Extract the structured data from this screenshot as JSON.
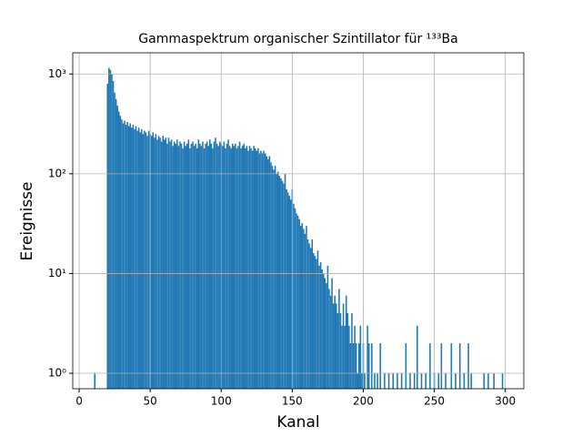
{
  "chart_data": {
    "type": "bar",
    "title": "Gammaspektrum organischer Szintillator für ¹³³Ba",
    "xlabel": "Kanal",
    "ylabel": "Ereignisse",
    "color": "#1f77b4",
    "grid": true,
    "ylog": true,
    "xlim": [
      -4.5,
      313
    ],
    "ylim": [
      0.7,
      1630
    ],
    "xticks": [
      0,
      50,
      100,
      150,
      200,
      250,
      300
    ],
    "yticks": [
      {
        "value": 1,
        "label": "10⁰"
      },
      {
        "value": 10,
        "label": "10¹"
      },
      {
        "value": 100,
        "label": "10²"
      },
      {
        "value": 1000,
        "label": "10³"
      }
    ],
    "x": [
      11,
      20,
      21,
      22,
      23,
      24,
      25,
      26,
      27,
      28,
      29,
      30,
      31,
      32,
      33,
      34,
      35,
      36,
      37,
      38,
      39,
      40,
      41,
      42,
      43,
      44,
      45,
      46,
      47,
      48,
      49,
      50,
      51,
      52,
      53,
      54,
      55,
      56,
      57,
      58,
      59,
      60,
      61,
      62,
      63,
      64,
      65,
      66,
      67,
      68,
      69,
      70,
      71,
      72,
      73,
      74,
      75,
      76,
      77,
      78,
      79,
      80,
      81,
      82,
      83,
      84,
      85,
      86,
      87,
      88,
      89,
      90,
      91,
      92,
      93,
      94,
      95,
      96,
      97,
      98,
      99,
      100,
      101,
      102,
      103,
      104,
      105,
      106,
      107,
      108,
      109,
      110,
      111,
      112,
      113,
      114,
      115,
      116,
      117,
      118,
      119,
      120,
      121,
      122,
      123,
      124,
      125,
      126,
      127,
      128,
      129,
      130,
      131,
      132,
      133,
      134,
      135,
      136,
      137,
      138,
      139,
      140,
      141,
      142,
      143,
      144,
      145,
      146,
      147,
      148,
      149,
      150,
      151,
      152,
      153,
      154,
      155,
      156,
      157,
      158,
      159,
      160,
      161,
      162,
      163,
      164,
      165,
      166,
      167,
      168,
      169,
      170,
      171,
      172,
      173,
      174,
      175,
      176,
      177,
      178,
      179,
      180,
      181,
      182,
      183,
      184,
      185,
      186,
      187,
      188,
      189,
      190,
      191,
      192,
      193,
      194,
      195,
      196,
      197,
      198,
      199,
      200,
      201,
      203,
      204,
      206,
      208,
      210,
      212,
      215,
      218,
      221,
      224,
      227,
      230,
      233,
      236,
      238,
      241,
      244,
      247,
      250,
      253,
      255,
      258,
      262,
      265,
      268,
      271,
      274,
      276,
      285,
      288,
      292,
      298
    ],
    "values": [
      1,
      800,
      1150,
      1100,
      1000,
      850,
      650,
      560,
      480,
      420,
      380,
      350,
      320,
      340,
      310,
      330,
      300,
      320,
      290,
      310,
      280,
      300,
      270,
      290,
      260,
      280,
      250,
      270,
      260,
      240,
      270,
      250,
      240,
      260,
      230,
      250,
      220,
      240,
      230,
      210,
      240,
      220,
      230,
      200,
      230,
      210,
      220,
      190,
      210,
      200,
      220,
      190,
      210,
      200,
      180,
      210,
      190,
      200,
      220,
      180,
      200,
      210,
      190,
      200,
      180,
      220,
      200,
      190,
      210,
      180,
      200,
      210,
      190,
      220,
      200,
      180,
      210,
      230,
      200,
      190,
      210,
      200,
      190,
      210,
      180,
      200,
      220,
      190,
      180,
      200,
      190,
      200,
      180,
      190,
      210,
      180,
      190,
      200,
      180,
      190,
      170,
      190,
      180,
      170,
      190,
      180,
      170,
      180,
      160,
      170,
      160,
      170,
      160,
      150,
      140,
      150,
      130,
      120,
      110,
      120,
      100,
      105,
      95,
      90,
      85,
      80,
      100,
      70,
      65,
      60,
      55,
      70,
      50,
      45,
      40,
      38,
      35,
      30,
      32,
      28,
      25,
      30,
      22,
      20,
      18,
      22,
      16,
      15,
      14,
      17,
      12,
      13,
      11,
      10,
      9,
      8,
      12,
      7,
      6,
      9,
      5,
      6,
      5,
      4,
      7,
      4,
      3,
      5,
      3,
      6,
      4,
      3,
      2,
      4,
      2,
      3,
      2,
      1,
      2,
      3,
      1,
      2,
      1,
      3,
      2,
      2,
      1,
      1,
      2,
      1,
      1,
      1,
      1,
      1,
      2,
      1,
      1,
      3,
      1,
      1,
      2,
      1,
      1,
      2,
      1,
      2,
      1,
      2,
      1,
      2,
      1,
      1,
      1,
      1,
      1
    ]
  }
}
